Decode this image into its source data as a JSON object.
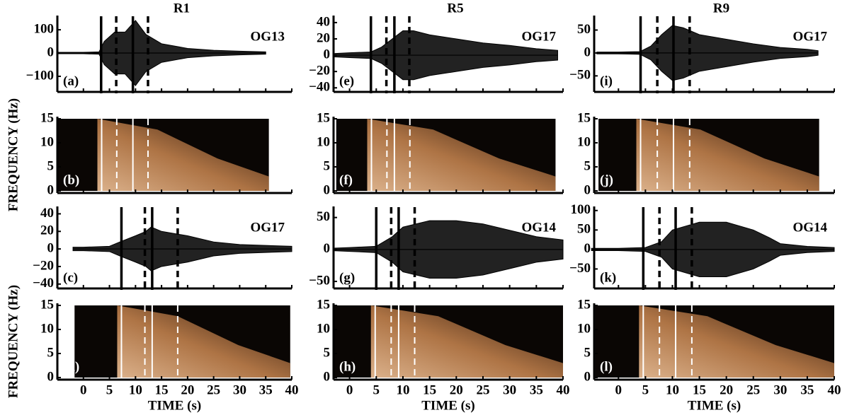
{
  "chart_data": [
    {
      "type": "seismogram",
      "title": "R1",
      "label": "(a)",
      "station": "OG13",
      "xlim": [
        -5,
        40
      ],
      "ylim": [
        -167,
        152
      ],
      "yticks": [
        {
          "value": -100,
          "label": "−100"
        },
        0,
        100
      ],
      "x": [
        -5,
        0,
        3,
        4,
        6,
        8,
        10,
        12,
        15,
        20,
        25,
        30,
        35
      ],
      "values": [
        3,
        3,
        5,
        50,
        90,
        90,
        140,
        80,
        40,
        20,
        12,
        8,
        5
      ],
      "markers": [
        {
          "time": 3.4,
          "style": "solid"
        },
        {
          "time": 6.3,
          "style": "dashed"
        },
        {
          "time": 9.5,
          "style": "solid"
        },
        {
          "time": 12.4,
          "style": "dashed"
        }
      ]
    },
    {
      "type": "spectrogram",
      "label": "(b)",
      "ylabel": "FREQUENCY (Hz)",
      "xlim": [
        -5,
        40
      ],
      "ylim": [
        0,
        15
      ],
      "yticks": [
        0,
        5,
        10,
        15
      ],
      "time_range": [
        -5,
        35.6
      ],
      "markers": [
        {
          "time": 3.5,
          "style": "solid"
        },
        {
          "time": 6.4,
          "style": "dashed"
        },
        {
          "time": 9.5,
          "style": "solid"
        },
        {
          "time": 12.4,
          "style": "dashed"
        }
      ]
    },
    {
      "type": "seismogram",
      "label": "(c)",
      "station": "OG17",
      "xlim": [
        -5,
        40
      ],
      "ylim": [
        -45,
        46
      ],
      "yticks": [
        {
          "value": -40,
          "label": "−40"
        },
        {
          "value": -20,
          "label": "−20"
        },
        0,
        20,
        40
      ],
      "x": [
        -2,
        0,
        5,
        7,
        10,
        12,
        13,
        15,
        20,
        25,
        30,
        35,
        40
      ],
      "values": [
        2,
        2,
        3,
        8,
        15,
        20,
        25,
        20,
        15,
        8,
        5,
        4,
        3
      ],
      "markers": [
        {
          "time": 7.3,
          "style": "solid"
        },
        {
          "time": 11.8,
          "style": "dashed"
        },
        {
          "time": 13.2,
          "style": "solid"
        },
        {
          "time": 18.1,
          "style": "dashed"
        }
      ]
    },
    {
      "type": "spectrogram",
      "label": "(d)",
      "ylabel": "FREQUENCY (Hz)",
      "xlabel": "TIME (s)",
      "xlim": [
        -5,
        40
      ],
      "ylim": [
        0,
        15
      ],
      "yticks": [
        0,
        5,
        10,
        15
      ],
      "xticks": [
        0,
        5,
        10,
        15,
        20,
        25,
        30,
        35,
        40
      ],
      "time_range": [
        -1.7,
        39.7
      ],
      "markers": [
        {
          "time": 7.3,
          "style": "solid"
        },
        {
          "time": 11.8,
          "style": "dashed"
        },
        {
          "time": 13.2,
          "style": "solid"
        },
        {
          "time": 18.1,
          "style": "dashed"
        }
      ]
    },
    {
      "type": "seismogram",
      "title": "R5",
      "label": "(e)",
      "station": "OG17",
      "xlim": [
        -3,
        40
      ],
      "ylim": [
        -45,
        46
      ],
      "yticks": [
        {
          "value": -40,
          "label": "−40"
        },
        {
          "value": -20,
          "label": "−20"
        },
        0,
        20,
        40
      ],
      "x": [
        -3,
        0,
        4,
        6,
        8,
        10,
        12,
        15,
        20,
        25,
        30,
        35,
        39
      ],
      "values": [
        2,
        3,
        4,
        10,
        20,
        30,
        30,
        25,
        20,
        15,
        12,
        8,
        6
      ],
      "markers": [
        {
          "time": 4.0,
          "style": "solid"
        },
        {
          "time": 6.9,
          "style": "dashed"
        },
        {
          "time": 8.4,
          "style": "solid"
        },
        {
          "time": 11.2,
          "style": "dashed"
        }
      ]
    },
    {
      "type": "spectrogram",
      "label": "(f)",
      "xlim": [
        -3,
        40
      ],
      "ylim": [
        0,
        15
      ],
      "yticks": [
        0,
        5,
        10,
        15
      ],
      "time_range": [
        -2.5,
        38.6
      ],
      "markers": [
        {
          "time": 4.1,
          "style": "solid"
        },
        {
          "time": 7.0,
          "style": "dashed"
        },
        {
          "time": 8.4,
          "style": "solid"
        },
        {
          "time": 11.3,
          "style": "dashed"
        }
      ]
    },
    {
      "type": "seismogram",
      "label": "(g)",
      "station": "OG14",
      "xlim": [
        -3,
        40
      ],
      "ylim": [
        -61,
        64
      ],
      "yticks": [
        {
          "value": -50,
          "label": "−50"
        },
        0,
        50
      ],
      "x": [
        -3,
        0,
        5,
        8,
        10,
        15,
        20,
        25,
        30,
        35,
        40
      ],
      "values": [
        2,
        3,
        5,
        20,
        35,
        45,
        45,
        40,
        30,
        20,
        15
      ],
      "markers": [
        {
          "time": 5.0,
          "style": "solid"
        },
        {
          "time": 7.8,
          "style": "dashed"
        },
        {
          "time": 9.2,
          "style": "solid"
        },
        {
          "time": 12.2,
          "style": "dashed"
        }
      ]
    },
    {
      "type": "spectrogram",
      "label": "(h)",
      "xlabel": "TIME (s)",
      "xlim": [
        -3,
        40
      ],
      "ylim": [
        0,
        15
      ],
      "yticks": [
        0,
        5,
        10,
        15
      ],
      "xticks": [
        0,
        5,
        10,
        15,
        20,
        25,
        30,
        35,
        40
      ],
      "time_range": [
        -3,
        40
      ],
      "markers": [
        {
          "time": 4.8,
          "style": "solid"
        },
        {
          "time": 7.8,
          "style": "dashed"
        },
        {
          "time": 9.2,
          "style": "solid"
        },
        {
          "time": 12.2,
          "style": "dashed"
        }
      ]
    },
    {
      "type": "seismogram",
      "title": "R9",
      "label": "(i)",
      "station": "OG17",
      "xlim": [
        -4.5,
        40
      ],
      "ylim": [
        -85,
        77
      ],
      "yticks": [
        {
          "value": -50,
          "label": "−50"
        },
        0,
        50
      ],
      "x": [
        -4,
        0,
        4,
        6,
        8,
        10,
        12,
        15,
        20,
        25,
        30,
        35,
        37
      ],
      "values": [
        2,
        2,
        3,
        15,
        40,
        60,
        55,
        40,
        30,
        20,
        12,
        8,
        5
      ],
      "markers": [
        {
          "time": 4.1,
          "style": "solid"
        },
        {
          "time": 7.2,
          "style": "dashed"
        },
        {
          "time": 10.2,
          "style": "solid"
        },
        {
          "time": 13.2,
          "style": "dashed"
        }
      ]
    },
    {
      "type": "spectrogram",
      "label": "(j)",
      "xlim": [
        -4.5,
        40
      ],
      "ylim": [
        0,
        15
      ],
      "yticks": [
        0,
        5,
        10,
        15
      ],
      "time_range": [
        -3.7,
        37.2
      ],
      "markers": [
        {
          "time": 4.1,
          "style": "solid"
        },
        {
          "time": 7.2,
          "style": "dashed"
        },
        {
          "time": 10.2,
          "style": "solid"
        },
        {
          "time": 13.2,
          "style": "dashed"
        }
      ]
    },
    {
      "type": "seismogram",
      "label": "(k)",
      "station": "OG14",
      "xlim": [
        -4.5,
        40
      ],
      "ylim": [
        -100,
        105
      ],
      "yticks": [
        {
          "value": -50,
          "label": "−50"
        },
        0,
        50,
        100
      ],
      "x": [
        -5,
        0,
        5,
        8,
        10,
        15,
        20,
        25,
        28,
        30,
        35,
        40
      ],
      "values": [
        3,
        3,
        5,
        20,
        50,
        70,
        70,
        50,
        30,
        15,
        8,
        5
      ],
      "markers": [
        {
          "time": 4.6,
          "style": "solid"
        },
        {
          "time": 7.6,
          "style": "dashed"
        },
        {
          "time": 10.6,
          "style": "solid"
        },
        {
          "time": 13.6,
          "style": "dashed"
        }
      ]
    },
    {
      "type": "spectrogram",
      "label": "(l)",
      "xlabel": "TIME (s)",
      "xlim": [
        -4.5,
        40
      ],
      "ylim": [
        0,
        15
      ],
      "yticks": [
        0,
        5,
        10,
        15
      ],
      "xticks": [
        0,
        5,
        10,
        15,
        20,
        25,
        30,
        35,
        40
      ],
      "time_range": [
        -4.3,
        40
      ],
      "markers": [
        {
          "time": 4.6,
          "style": "solid"
        },
        {
          "time": 7.6,
          "style": "dashed"
        },
        {
          "time": 10.6,
          "style": "solid"
        },
        {
          "time": 13.6,
          "style": "dashed"
        }
      ]
    }
  ]
}
